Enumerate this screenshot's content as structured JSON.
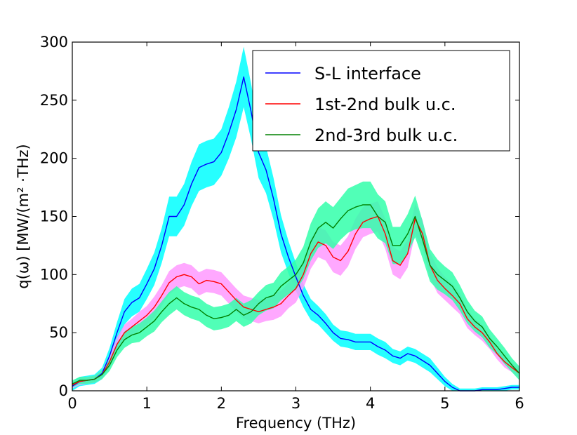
{
  "chart_data": {
    "type": "line",
    "title": "",
    "xlabel": "Frequency (THz)",
    "ylabel": "q(ω) [MW/(m² ·THz)",
    "xlim": [
      0,
      6
    ],
    "ylim": [
      0,
      300
    ],
    "xticks": [
      "0",
      "1",
      "2",
      "3",
      "4",
      "5",
      "6"
    ],
    "yticks": [
      "0",
      "50",
      "100",
      "150",
      "200",
      "250",
      "300"
    ],
    "grid": false,
    "legend_position": "top-right",
    "series": [
      {
        "name": "S-L interface",
        "color": "#0000ff",
        "band_color": "#00ffff",
        "x": [
          0,
          0.1,
          0.2,
          0.3,
          0.4,
          0.5,
          0.6,
          0.7,
          0.8,
          0.9,
          1.0,
          1.1,
          1.2,
          1.3,
          1.4,
          1.5,
          1.6,
          1.7,
          1.8,
          1.9,
          2.0,
          2.1,
          2.2,
          2.3,
          2.4,
          2.5,
          2.6,
          2.7,
          2.8,
          2.9,
          3.0,
          3.1,
          3.2,
          3.3,
          3.4,
          3.5,
          3.6,
          3.7,
          3.8,
          3.9,
          4.0,
          4.1,
          4.2,
          4.3,
          4.4,
          4.5,
          4.6,
          4.7,
          4.8,
          4.9,
          5.0,
          5.1,
          5.2,
          5.3,
          5.4,
          5.5,
          5.6,
          5.7,
          5.8,
          5.9,
          6.0
        ],
        "y": [
          4,
          8,
          9,
          10,
          15,
          30,
          50,
          68,
          76,
          80,
          92,
          105,
          125,
          150,
          150,
          160,
          178,
          192,
          195,
          197,
          205,
          222,
          242,
          270,
          240,
          205,
          190,
          165,
          135,
          115,
          98,
          82,
          70,
          65,
          58,
          50,
          45,
          44,
          42,
          42,
          42,
          38,
          35,
          30,
          28,
          32,
          30,
          26,
          22,
          15,
          8,
          3,
          0,
          0,
          0,
          1,
          1,
          1,
          2,
          3,
          3
        ],
        "band": [
          4,
          4,
          4,
          4,
          5,
          7,
          9,
          11,
          12,
          12,
          13,
          14,
          15,
          17,
          17,
          18,
          19,
          20,
          20,
          20,
          20,
          22,
          24,
          26,
          24,
          22,
          20,
          18,
          16,
          14,
          12,
          10,
          9,
          8,
          8,
          7,
          7,
          7,
          7,
          7,
          7,
          7,
          7,
          6,
          6,
          6,
          6,
          6,
          6,
          5,
          4,
          3,
          2,
          2,
          2,
          2,
          2,
          2,
          2,
          2,
          2
        ]
      },
      {
        "name": "1st-2nd bulk u.c.",
        "color": "#ff0000",
        "band_color": "#ff99ff",
        "x": [
          0,
          0.1,
          0.2,
          0.3,
          0.4,
          0.5,
          0.6,
          0.7,
          0.8,
          0.9,
          1.0,
          1.1,
          1.2,
          1.3,
          1.4,
          1.5,
          1.6,
          1.7,
          1.8,
          1.9,
          2.0,
          2.1,
          2.2,
          2.3,
          2.4,
          2.5,
          2.6,
          2.7,
          2.8,
          2.9,
          3.0,
          3.1,
          3.2,
          3.3,
          3.4,
          3.5,
          3.6,
          3.7,
          3.8,
          3.9,
          4.0,
          4.1,
          4.2,
          4.3,
          4.4,
          4.5,
          4.6,
          4.7,
          4.8,
          4.9,
          5.0,
          5.1,
          5.2,
          5.3,
          5.4,
          5.5,
          5.6,
          5.7,
          5.8,
          5.9,
          6.0
        ],
        "y": [
          5,
          8,
          9,
          10,
          14,
          25,
          40,
          50,
          55,
          60,
          65,
          72,
          82,
          93,
          98,
          100,
          98,
          92,
          95,
          94,
          92,
          85,
          78,
          72,
          70,
          68,
          70,
          72,
          75,
          82,
          88,
          100,
          118,
          128,
          125,
          115,
          112,
          120,
          135,
          145,
          148,
          150,
          135,
          112,
          108,
          118,
          148,
          135,
          108,
          95,
          88,
          82,
          75,
          62,
          55,
          50,
          42,
          32,
          25,
          20,
          15
        ],
        "band": [
          3,
          3,
          3,
          3,
          4,
          5,
          6,
          7,
          7,
          8,
          8,
          9,
          9,
          10,
          10,
          10,
          10,
          10,
          10,
          10,
          10,
          10,
          10,
          10,
          10,
          10,
          10,
          11,
          11,
          11,
          12,
          12,
          13,
          13,
          13,
          13,
          13,
          13,
          13,
          13,
          13,
          13,
          13,
          12,
          12,
          12,
          13,
          12,
          11,
          11,
          10,
          10,
          9,
          8,
          7,
          7,
          6,
          5,
          5,
          4,
          4
        ]
      },
      {
        "name": "2nd-3rd bulk u.c.",
        "color": "#008000",
        "band_color": "#33ffaa",
        "x": [
          0,
          0.1,
          0.2,
          0.3,
          0.4,
          0.5,
          0.6,
          0.7,
          0.8,
          0.9,
          1.0,
          1.1,
          1.2,
          1.3,
          1.4,
          1.5,
          1.6,
          1.7,
          1.8,
          1.9,
          2.0,
          2.1,
          2.2,
          2.3,
          2.4,
          2.5,
          2.6,
          2.7,
          2.8,
          2.9,
          3.0,
          3.1,
          3.2,
          3.3,
          3.4,
          3.5,
          3.6,
          3.7,
          3.8,
          3.9,
          4.0,
          4.1,
          4.2,
          4.3,
          4.4,
          4.5,
          4.6,
          4.7,
          4.8,
          4.9,
          5.0,
          5.1,
          5.2,
          5.3,
          5.4,
          5.5,
          5.6,
          5.7,
          5.8,
          5.9,
          6.0
        ],
        "y": [
          6,
          9,
          9,
          10,
          14,
          22,
          35,
          44,
          48,
          50,
          55,
          60,
          68,
          75,
          80,
          75,
          72,
          70,
          65,
          62,
          63,
          65,
          70,
          65,
          68,
          75,
          80,
          82,
          90,
          95,
          100,
          110,
          128,
          140,
          145,
          140,
          148,
          155,
          158,
          160,
          160,
          150,
          145,
          125,
          125,
          135,
          150,
          130,
          108,
          100,
          95,
          90,
          80,
          68,
          60,
          55,
          45,
          38,
          30,
          22,
          15
        ],
        "band": [
          3,
          3,
          3,
          3,
          4,
          5,
          6,
          7,
          7,
          8,
          8,
          9,
          9,
          10,
          10,
          10,
          10,
          10,
          10,
          10,
          10,
          10,
          10,
          10,
          10,
          10,
          11,
          11,
          12,
          12,
          13,
          14,
          16,
          17,
          18,
          18,
          18,
          19,
          19,
          20,
          20,
          19,
          18,
          16,
          16,
          17,
          18,
          16,
          14,
          13,
          12,
          12,
          11,
          10,
          9,
          9,
          8,
          7,
          7,
          6,
          6
        ]
      }
    ]
  }
}
